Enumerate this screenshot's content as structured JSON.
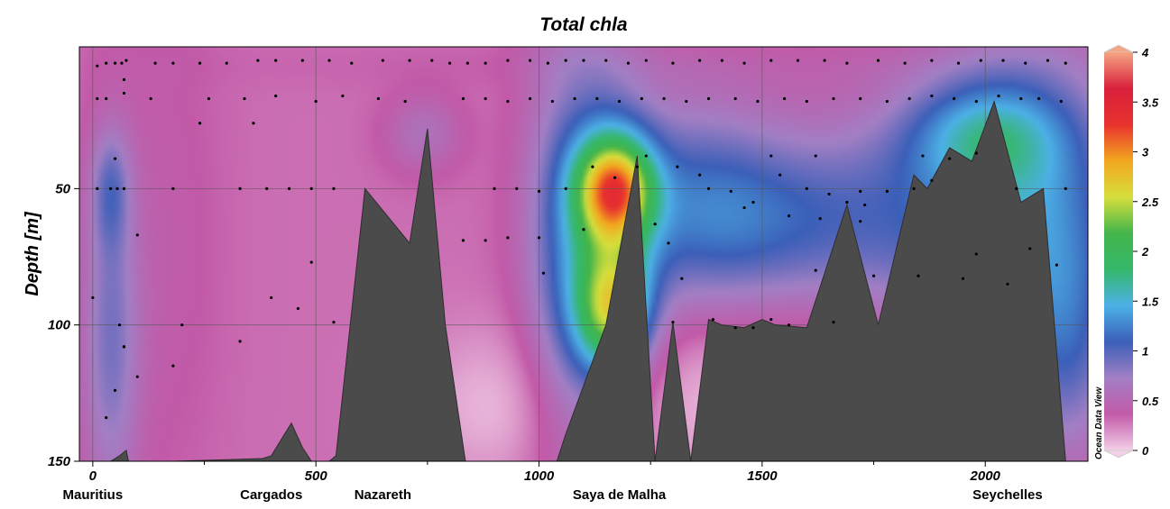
{
  "chart_data": {
    "type": "heatmap",
    "title": "Total chla",
    "ylabel": "Depth [m]",
    "xlabel": "",
    "xlim": [
      -30,
      2230
    ],
    "ylim": [
      150,
      -2
    ],
    "x_ticks": [
      0,
      500,
      1000,
      1500,
      2000
    ],
    "y_ticks": [
      50,
      100,
      150
    ],
    "grid": true,
    "stations": [
      {
        "name": "Mauritius",
        "x": 0
      },
      {
        "name": "Cargados",
        "x": 400
      },
      {
        "name": "Nazareth",
        "x": 650
      },
      {
        "name": "Saya de Malha",
        "x": 1180
      },
      {
        "name": "Seychelles",
        "x": 2050
      }
    ],
    "colorbar": {
      "ticks": [
        0,
        0.5,
        1,
        1.5,
        2,
        2.5,
        3,
        3.5,
        4
      ],
      "range": [
        0,
        4
      ],
      "colors": [
        "#f3cfe8",
        "#c25aa8",
        "#a27fc4",
        "#3b5fb8",
        "#4cb0e6",
        "#35b86b",
        "#43b54a",
        "#d6de3c",
        "#f2a71f",
        "#e8322d",
        "#d9203c",
        "#f5a584"
      ]
    },
    "credit": "Ocean Data View",
    "background_value": 0.3,
    "field_features": [
      {
        "x": 1170,
        "depth": 50,
        "value": 1.8,
        "sx": 60,
        "sd": 13
      },
      {
        "x": 1165,
        "depth": 95,
        "value": 1.35,
        "sx": 55,
        "sd": 15
      },
      {
        "x": 1160,
        "depth": 72,
        "value": 0.9,
        "sx": 70,
        "sd": 40
      },
      {
        "x": 1060,
        "depth": 75,
        "value": 0.6,
        "sx": 70,
        "sd": 55
      },
      {
        "x": 1330,
        "depth": 55,
        "value": 0.6,
        "sx": 140,
        "sd": 28
      },
      {
        "x": 1520,
        "depth": 62,
        "value": 0.55,
        "sx": 170,
        "sd": 22
      },
      {
        "x": 1880,
        "depth": 60,
        "value": 0.6,
        "sx": 200,
        "sd": 30
      },
      {
        "x": 2120,
        "depth": 55,
        "value": 0.7,
        "sx": 150,
        "sd": 40
      },
      {
        "x": 2180,
        "depth": 110,
        "value": 0.55,
        "sx": 80,
        "sd": 30
      },
      {
        "x": 2000,
        "depth": 30,
        "value": 0.75,
        "sx": 120,
        "sd": 14
      },
      {
        "x": 40,
        "depth": 105,
        "value": 0.55,
        "sx": 45,
        "sd": 45
      },
      {
        "x": 40,
        "depth": 50,
        "value": 0.45,
        "sx": 30,
        "sd": 15
      },
      {
        "x": 160,
        "depth": 70,
        "value": 0.1,
        "sx": 90,
        "sd": 70
      },
      {
        "x": 740,
        "depth": 30,
        "value": 0.3,
        "sx": 60,
        "sd": 10
      },
      {
        "x": 1500,
        "depth": 125,
        "value": -0.25,
        "sx": 300,
        "sd": 25
      },
      {
        "x": 900,
        "depth": 130,
        "value": -0.2,
        "sx": 130,
        "sd": 20
      },
      {
        "x": 1500,
        "depth": 5,
        "value": 0.05,
        "sx": 900,
        "sd": 6
      }
    ],
    "topography": [
      [
        -30,
        150
      ],
      [
        40,
        150
      ],
      [
        60,
        148
      ],
      [
        75,
        146
      ],
      [
        80,
        150
      ],
      [
        180,
        150
      ],
      [
        380,
        149
      ],
      [
        400,
        148
      ],
      [
        445,
        136
      ],
      [
        470,
        145
      ],
      [
        490,
        150
      ],
      [
        530,
        150
      ],
      [
        545,
        148
      ],
      [
        610,
        50
      ],
      [
        710,
        70
      ],
      [
        750,
        28
      ],
      [
        790,
        100
      ],
      [
        835,
        150
      ],
      [
        1040,
        150
      ],
      [
        1060,
        140
      ],
      [
        1150,
        100
      ],
      [
        1220,
        38
      ],
      [
        1260,
        150
      ],
      [
        1300,
        99
      ],
      [
        1340,
        150
      ],
      [
        1380,
        98
      ],
      [
        1410,
        100
      ],
      [
        1460,
        101
      ],
      [
        1500,
        98
      ],
      [
        1530,
        100
      ],
      [
        1600,
        101
      ],
      [
        1690,
        56
      ],
      [
        1760,
        100
      ],
      [
        1840,
        45
      ],
      [
        1870,
        50
      ],
      [
        1920,
        35
      ],
      [
        1970,
        40
      ],
      [
        2020,
        18
      ],
      [
        2080,
        55
      ],
      [
        2130,
        50
      ],
      [
        2180,
        150
      ],
      [
        2230,
        150
      ]
    ],
    "sample_points": [
      [
        10,
        5
      ],
      [
        30,
        4
      ],
      [
        50,
        4
      ],
      [
        65,
        4
      ],
      [
        75,
        3
      ],
      [
        140,
        4
      ],
      [
        180,
        4
      ],
      [
        240,
        4
      ],
      [
        300,
        4
      ],
      [
        370,
        3
      ],
      [
        410,
        3
      ],
      [
        470,
        3
      ],
      [
        530,
        3
      ],
      [
        580,
        4
      ],
      [
        650,
        3
      ],
      [
        710,
        3
      ],
      [
        760,
        3
      ],
      [
        800,
        4
      ],
      [
        840,
        4
      ],
      [
        880,
        4
      ],
      [
        930,
        3
      ],
      [
        980,
        3
      ],
      [
        1020,
        4
      ],
      [
        1060,
        3
      ],
      [
        1100,
        3
      ],
      [
        1150,
        3
      ],
      [
        1200,
        4
      ],
      [
        1240,
        3
      ],
      [
        1300,
        4
      ],
      [
        1360,
        3
      ],
      [
        1410,
        3
      ],
      [
        1460,
        4
      ],
      [
        1520,
        3
      ],
      [
        1580,
        3
      ],
      [
        1640,
        3
      ],
      [
        1690,
        4
      ],
      [
        1760,
        3
      ],
      [
        1820,
        4
      ],
      [
        1880,
        3
      ],
      [
        1940,
        4
      ],
      [
        1990,
        3
      ],
      [
        2040,
        3
      ],
      [
        2090,
        4
      ],
      [
        2140,
        3
      ],
      [
        2180,
        4
      ],
      [
        10,
        17
      ],
      [
        30,
        17
      ],
      [
        70,
        15
      ],
      [
        130,
        17
      ],
      [
        260,
        17
      ],
      [
        340,
        17
      ],
      [
        410,
        16
      ],
      [
        500,
        18
      ],
      [
        560,
        16
      ],
      [
        640,
        17
      ],
      [
        700,
        18
      ],
      [
        830,
        17
      ],
      [
        880,
        17
      ],
      [
        930,
        18
      ],
      [
        980,
        17
      ],
      [
        1030,
        18
      ],
      [
        1080,
        17
      ],
      [
        1130,
        17
      ],
      [
        1180,
        18
      ],
      [
        1230,
        17
      ],
      [
        1280,
        17
      ],
      [
        1330,
        18
      ],
      [
        1380,
        17
      ],
      [
        1440,
        17
      ],
      [
        1490,
        18
      ],
      [
        1550,
        17
      ],
      [
        1600,
        18
      ],
      [
        1660,
        17
      ],
      [
        1720,
        17
      ],
      [
        1780,
        18
      ],
      [
        1830,
        17
      ],
      [
        1880,
        16
      ],
      [
        1930,
        17
      ],
      [
        1980,
        18
      ],
      [
        2030,
        16
      ],
      [
        2080,
        17
      ],
      [
        2120,
        17
      ],
      [
        2170,
        18
      ],
      [
        70,
        10
      ],
      [
        240,
        26
      ],
      [
        360,
        26
      ],
      [
        50,
        39
      ],
      [
        1240,
        38
      ],
      [
        1360,
        45
      ],
      [
        1520,
        38
      ],
      [
        1620,
        38
      ],
      [
        1690,
        55
      ],
      [
        1730,
        56
      ],
      [
        1860,
        38
      ],
      [
        1920,
        39
      ],
      [
        1980,
        37
      ],
      [
        1880,
        47
      ],
      [
        10,
        50
      ],
      [
        40,
        50
      ],
      [
        55,
        50
      ],
      [
        70,
        50
      ],
      [
        180,
        50
      ],
      [
        330,
        50
      ],
      [
        390,
        50
      ],
      [
        440,
        50
      ],
      [
        490,
        50
      ],
      [
        540,
        50
      ],
      [
        900,
        50
      ],
      [
        950,
        50
      ],
      [
        1000,
        51
      ],
      [
        1060,
        50
      ],
      [
        1120,
        42
      ],
      [
        1170,
        46
      ],
      [
        1220,
        42
      ],
      [
        1310,
        42
      ],
      [
        1380,
        50
      ],
      [
        1430,
        51
      ],
      [
        1480,
        55
      ],
      [
        1540,
        45
      ],
      [
        1600,
        50
      ],
      [
        1650,
        52
      ],
      [
        1720,
        51
      ],
      [
        1780,
        51
      ],
      [
        1840,
        50
      ],
      [
        2070,
        50
      ],
      [
        2180,
        50
      ],
      [
        100,
        67
      ],
      [
        1000,
        68
      ],
      [
        1100,
        65
      ],
      [
        1260,
        63
      ],
      [
        1460,
        57
      ],
      [
        1560,
        60
      ],
      [
        1630,
        61
      ],
      [
        1720,
        62
      ],
      [
        830,
        69
      ],
      [
        880,
        69
      ],
      [
        930,
        68
      ],
      [
        1290,
        70
      ],
      [
        490,
        77
      ],
      [
        1320,
        83
      ],
      [
        1620,
        80
      ],
      [
        1750,
        82
      ],
      [
        1850,
        82
      ],
      [
        1950,
        83
      ],
      [
        2050,
        85
      ],
      [
        1980,
        74
      ],
      [
        2100,
        72
      ],
      [
        2160,
        78
      ],
      [
        0,
        90
      ],
      [
        70,
        108
      ],
      [
        400,
        90
      ],
      [
        460,
        94
      ],
      [
        1010,
        81
      ],
      [
        60,
        100
      ],
      [
        200,
        100
      ],
      [
        540,
        99
      ],
      [
        1300,
        99
      ],
      [
        1390,
        98
      ],
      [
        1440,
        101
      ],
      [
        1480,
        101
      ],
      [
        1520,
        98
      ],
      [
        1560,
        100
      ],
      [
        1660,
        99
      ],
      [
        70,
        108
      ],
      [
        330,
        106
      ],
      [
        180,
        115
      ],
      [
        100,
        119
      ],
      [
        50,
        124
      ],
      [
        30,
        134
      ]
    ]
  }
}
